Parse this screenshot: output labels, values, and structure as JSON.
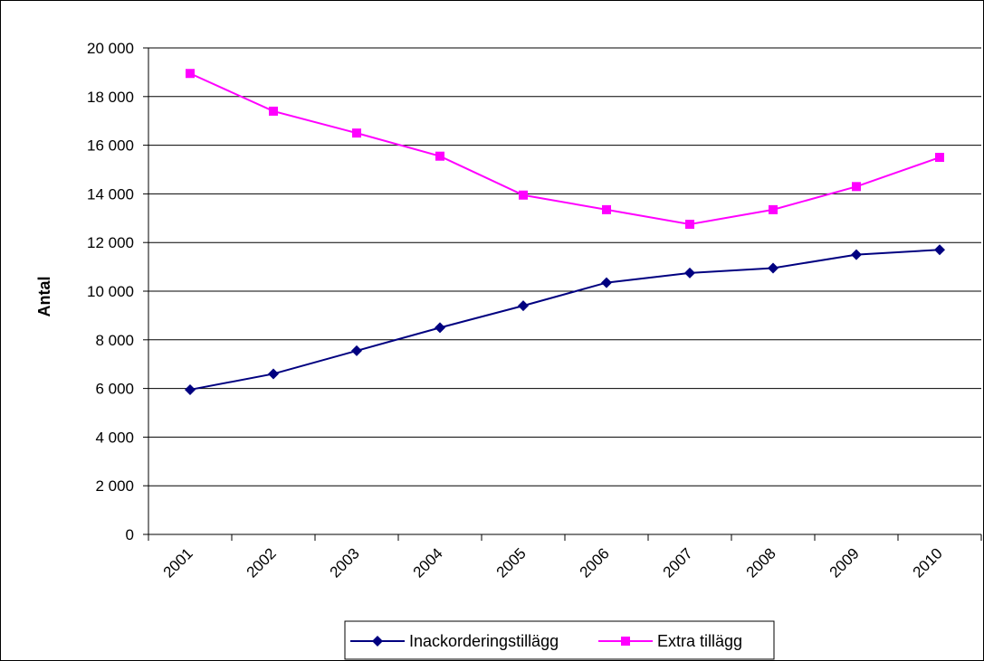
{
  "chart_data": {
    "type": "line",
    "title": "",
    "xlabel": "",
    "ylabel": "Antal",
    "categories": [
      "2001",
      "2002",
      "2003",
      "2004",
      "2005",
      "2006",
      "2007",
      "2008",
      "2009",
      "2010"
    ],
    "series": [
      {
        "name": "Inackorderingstillägg",
        "color": "#000080",
        "marker": "diamond",
        "values": [
          5950,
          6600,
          7550,
          8500,
          9400,
          10350,
          10750,
          10950,
          11500,
          11700
        ]
      },
      {
        "name": "Extra tillägg",
        "color": "#FF00FF",
        "marker": "square",
        "values": [
          18950,
          17400,
          16500,
          15550,
          13950,
          13350,
          12750,
          13350,
          14300,
          15500
        ]
      }
    ],
    "ylim": [
      0,
      20000
    ],
    "yticks": [
      0,
      2000,
      4000,
      6000,
      8000,
      10000,
      12000,
      14000,
      16000,
      18000,
      20000
    ],
    "ytick_labels": [
      "0",
      "2 000",
      "4 000",
      "6 000",
      "8 000",
      "10 000",
      "12 000",
      "14 000",
      "16 000",
      "18 000",
      "20 000"
    ],
    "grid": true,
    "legend_position": "bottom"
  }
}
